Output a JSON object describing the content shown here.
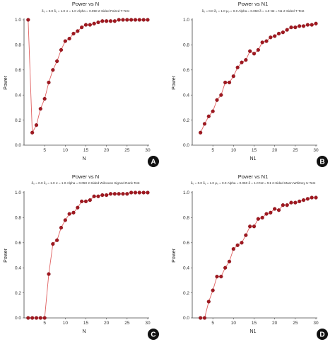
{
  "chart_data": [
    {
      "type": "line",
      "title": "Power vs N",
      "subtitle": "δ₀ = 0.0  δ₁ = 1.0  σ = 1.0  Alpha = 0.050  2-Sided Paired T-Test",
      "xlabel": "N",
      "ylabel": "Power",
      "badge": "A",
      "xlim": [
        0,
        30
      ],
      "ylim": [
        0,
        1.0
      ],
      "xticks": [
        5,
        10,
        15,
        20,
        25,
        30
      ],
      "yticks": [
        0.0,
        0.2,
        0.4,
        0.6,
        0.8,
        1.0
      ],
      "grid": false,
      "series": [
        {
          "x": [
            1,
            2,
            3,
            4,
            5,
            6,
            7,
            8,
            9,
            10,
            11,
            12,
            13,
            14,
            15,
            16,
            17,
            18,
            19,
            20,
            21,
            22,
            23,
            24,
            25,
            26,
            27,
            28,
            29,
            30
          ],
          "y": [
            1.0,
            0.1,
            0.16,
            0.29,
            0.37,
            0.5,
            0.6,
            0.67,
            0.76,
            0.83,
            0.85,
            0.89,
            0.91,
            0.94,
            0.96,
            0.96,
            0.97,
            0.98,
            0.99,
            0.99,
            0.99,
            0.99,
            1.0,
            1.0,
            1.0,
            1.0,
            1.0,
            1.0,
            1.0,
            1.0
          ]
        }
      ]
    },
    {
      "type": "line",
      "title": "Power vs N1",
      "subtitle": "δ₀ = 0.0  δ₁ = 1.0  μ₀ = 0.0  Alpha = 0.050  δ = 1.0  N2 = N1  2-Sided T-Test",
      "xlabel": "N1",
      "ylabel": "Power",
      "badge": "B",
      "xlim": [
        0,
        30
      ],
      "ylim": [
        0,
        1.0
      ],
      "xticks": [
        5,
        10,
        15,
        20,
        25,
        30
      ],
      "yticks": [
        0.0,
        0.2,
        0.4,
        0.6,
        0.8,
        1.0
      ],
      "grid": false,
      "series": [
        {
          "x": [
            2,
            3,
            4,
            5,
            6,
            7,
            8,
            9,
            10,
            11,
            12,
            13,
            14,
            15,
            16,
            17,
            18,
            19,
            20,
            21,
            22,
            23,
            24,
            25,
            26,
            27,
            28,
            29,
            30
          ],
          "y": [
            0.1,
            0.17,
            0.23,
            0.27,
            0.36,
            0.4,
            0.5,
            0.5,
            0.55,
            0.62,
            0.66,
            0.68,
            0.75,
            0.73,
            0.76,
            0.82,
            0.83,
            0.86,
            0.87,
            0.89,
            0.9,
            0.92,
            0.94,
            0.94,
            0.95,
            0.95,
            0.96,
            0.96,
            0.97
          ]
        }
      ]
    },
    {
      "type": "line",
      "title": "Power vs N",
      "subtitle": "δ₀ = 0.0  δ₁ = 1.0  σ = 1.0  Alpha = 0.050  2-Sided Wilcoxon Signed-Rank Test",
      "xlabel": "N",
      "ylabel": "Power",
      "badge": "C",
      "xlim": [
        0,
        30
      ],
      "ylim": [
        0,
        1.0
      ],
      "xticks": [
        5,
        10,
        15,
        20,
        25,
        30
      ],
      "yticks": [
        0.0,
        0.2,
        0.4,
        0.6,
        0.8,
        1.0
      ],
      "grid": false,
      "series": [
        {
          "x": [
            1,
            2,
            3,
            4,
            5,
            6,
            7,
            8,
            9,
            10,
            11,
            12,
            13,
            14,
            15,
            16,
            17,
            18,
            19,
            20,
            21,
            22,
            23,
            24,
            25,
            26,
            27,
            28,
            29,
            30
          ],
          "y": [
            0.0,
            0.0,
            0.0,
            0.0,
            0.0,
            0.35,
            0.59,
            0.62,
            0.72,
            0.78,
            0.83,
            0.84,
            0.88,
            0.93,
            0.93,
            0.94,
            0.97,
            0.97,
            0.98,
            0.98,
            0.99,
            0.99,
            0.99,
            0.99,
            0.99,
            1.0,
            1.0,
            1.0,
            1.0,
            1.0
          ]
        }
      ]
    },
    {
      "type": "line",
      "title": "Power vs N1",
      "subtitle": "δ₀ = 0.0  δ₁ = 1.0  μ₀ = 0.0  Alpha = 0.050  δ = 1.0  N2 = N1  2-Sided Mann-Whitney U Test",
      "xlabel": "N1",
      "ylabel": "Power",
      "badge": "D",
      "xlim": [
        0,
        30
      ],
      "ylim": [
        0,
        1.0
      ],
      "xticks": [
        5,
        10,
        15,
        20,
        25,
        30
      ],
      "yticks": [
        0.0,
        0.2,
        0.4,
        0.6,
        0.8,
        1.0
      ],
      "grid": false,
      "series": [
        {
          "x": [
            2,
            3,
            4,
            5,
            6,
            7,
            8,
            9,
            10,
            11,
            12,
            13,
            14,
            15,
            16,
            17,
            18,
            19,
            20,
            21,
            22,
            23,
            24,
            25,
            26,
            27,
            28,
            29,
            30
          ],
          "y": [
            0.0,
            0.0,
            0.13,
            0.22,
            0.33,
            0.33,
            0.4,
            0.45,
            0.55,
            0.58,
            0.6,
            0.66,
            0.73,
            0.73,
            0.79,
            0.8,
            0.83,
            0.84,
            0.87,
            0.86,
            0.9,
            0.9,
            0.92,
            0.92,
            0.93,
            0.94,
            0.95,
            0.96,
            0.96
          ]
        }
      ]
    }
  ],
  "colors": {
    "line": "#e06060",
    "marker": "#a01820",
    "axis": "#444444",
    "badge": "#111111"
  }
}
